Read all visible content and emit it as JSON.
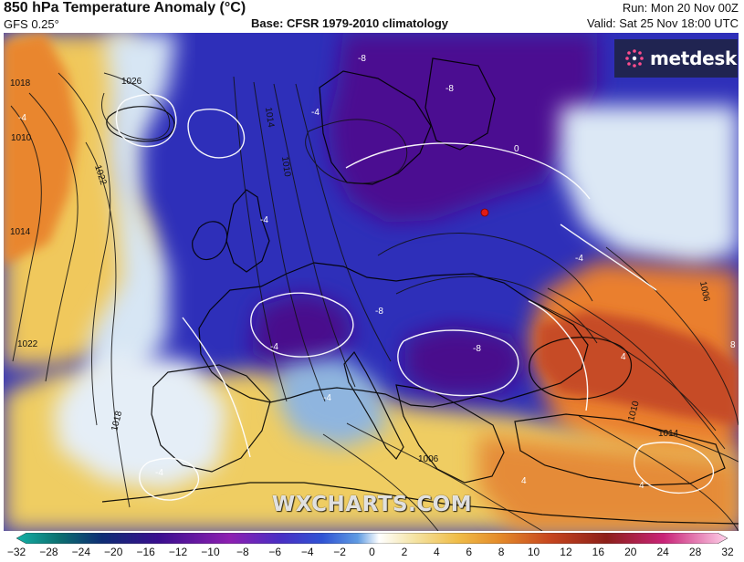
{
  "header": {
    "title": "850 hPa Temperature Anomaly (°C)",
    "model": "GFS 0.25°",
    "base": "Base: CFSR 1979-2010 climatology",
    "run": "Run: Mon 20 Nov 00Z",
    "valid": "Valid: Sat 25 Nov 18:00 UTC"
  },
  "branding": {
    "logo_text": "metdesk",
    "watermark": "WXCHARTS.COM"
  },
  "icons": {
    "logo": "metdesk-logo-icon"
  },
  "colors": {
    "cold_deep": "#4b0d8f",
    "cold_blue": "#2e2fb9",
    "cool_light": "#dde9f5",
    "warm_yellow": "#f2cf63",
    "warm_orange": "#e97c2d",
    "hot_red": "#c84a25",
    "brand_bg": "#202451"
  },
  "legend": {
    "ticks": [
      "−32",
      "−28",
      "−24",
      "−20",
      "−16",
      "−12",
      "−10",
      "−8",
      "−6",
      "−4",
      "−2",
      "0",
      "2",
      "4",
      "6",
      "8",
      "10",
      "12",
      "16",
      "20",
      "24",
      "28",
      "32"
    ]
  },
  "isobar_labels": [
    "1018",
    "1010",
    "1014",
    "1026",
    "1022",
    "1014",
    "1010",
    "1022",
    "1018",
    "1006",
    "1010",
    "1014",
    "1006"
  ],
  "anomaly_labels": [
    "-8",
    "-8",
    "-4",
    "-4",
    "-4",
    "0",
    "-4",
    "-4",
    "-8",
    "-4",
    "-8",
    "4",
    "-4",
    "4",
    "4",
    "8"
  ]
}
